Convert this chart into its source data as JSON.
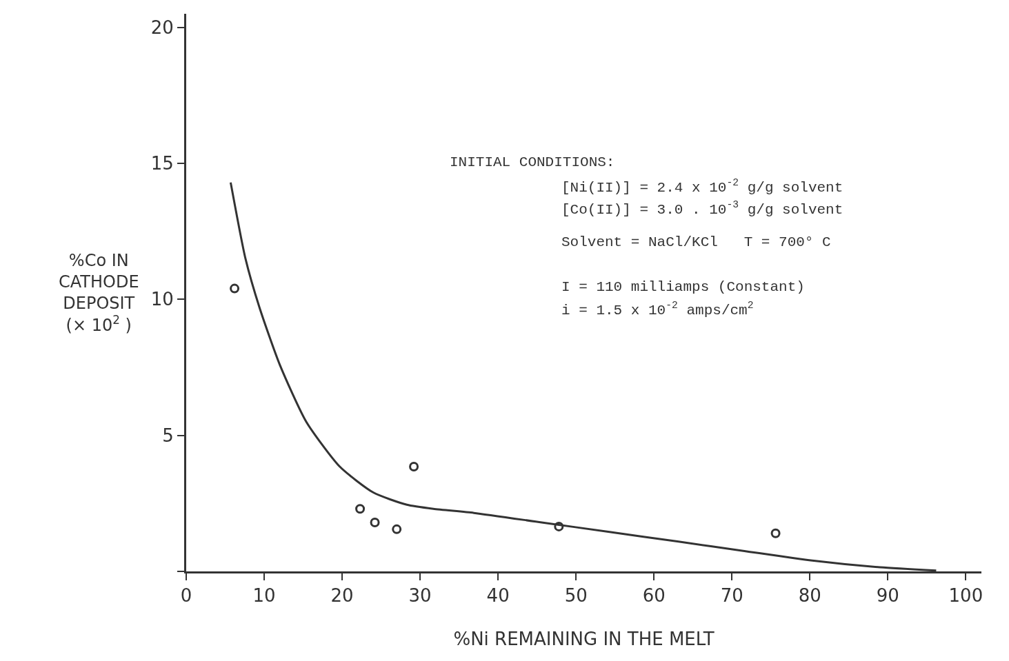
{
  "chart_data": {
    "type": "scatter",
    "xlabel": "%Ni REMAINING IN THE MELT",
    "ylabel": "%Co IN\nCATHODE\nDEPOSIT\n(× 10$^{2}$ )",
    "series": [
      {
        "color": "#333333",
        "marker": "circle",
        "x": [
          6.2,
          22.3,
          24.2,
          27.0,
          29.2,
          47.8,
          75.6
        ],
        "values": [
          10.4,
          2.3,
          1.8,
          1.55,
          3.85,
          1.65,
          1.4
        ]
      },
      {
        "type": "line",
        "color": "#333333",
        "marker": "none",
        "line_style": "solid",
        "x": [
          5.7,
          7.6,
          9.4,
          12.0,
          15.4,
          19.7,
          24.0,
          28.3,
          31.7,
          36.9,
          45.6,
          54.3,
          63.0,
          71.6,
          80.3,
          89.0,
          96.2
        ],
        "values": [
          14.3,
          11.5,
          9.7,
          7.6,
          5.5,
          3.85,
          2.9,
          2.45,
          2.3,
          2.15,
          1.8,
          1.45,
          1.1,
          0.75,
          0.4,
          0.15,
          0.03
        ]
      }
    ],
    "xlim": [
      0,
      102
    ],
    "ylim": [
      0,
      20.5
    ],
    "xticks": [
      0,
      10,
      20,
      30,
      40,
      50,
      60,
      70,
      80,
      90,
      100
    ],
    "yticks": [
      {
        "value": 0,
        "label": null
      },
      5,
      10,
      15,
      20
    ],
    "annotations": [
      "INITIAL CONDITIONS:",
      "[Ni(II)] = 2.4 x 10$^{-2}$ g/g solvent",
      "[Co(II)] = 3.0 . 10$^{-3}$ g/g solvent",
      "Solvent = NaCl/KCl   T = 700° C",
      "I = 110 milliamps (Constant)",
      "i = 1.5 x 10$^{-2}$ amps/cm$^{2}$"
    ]
  }
}
